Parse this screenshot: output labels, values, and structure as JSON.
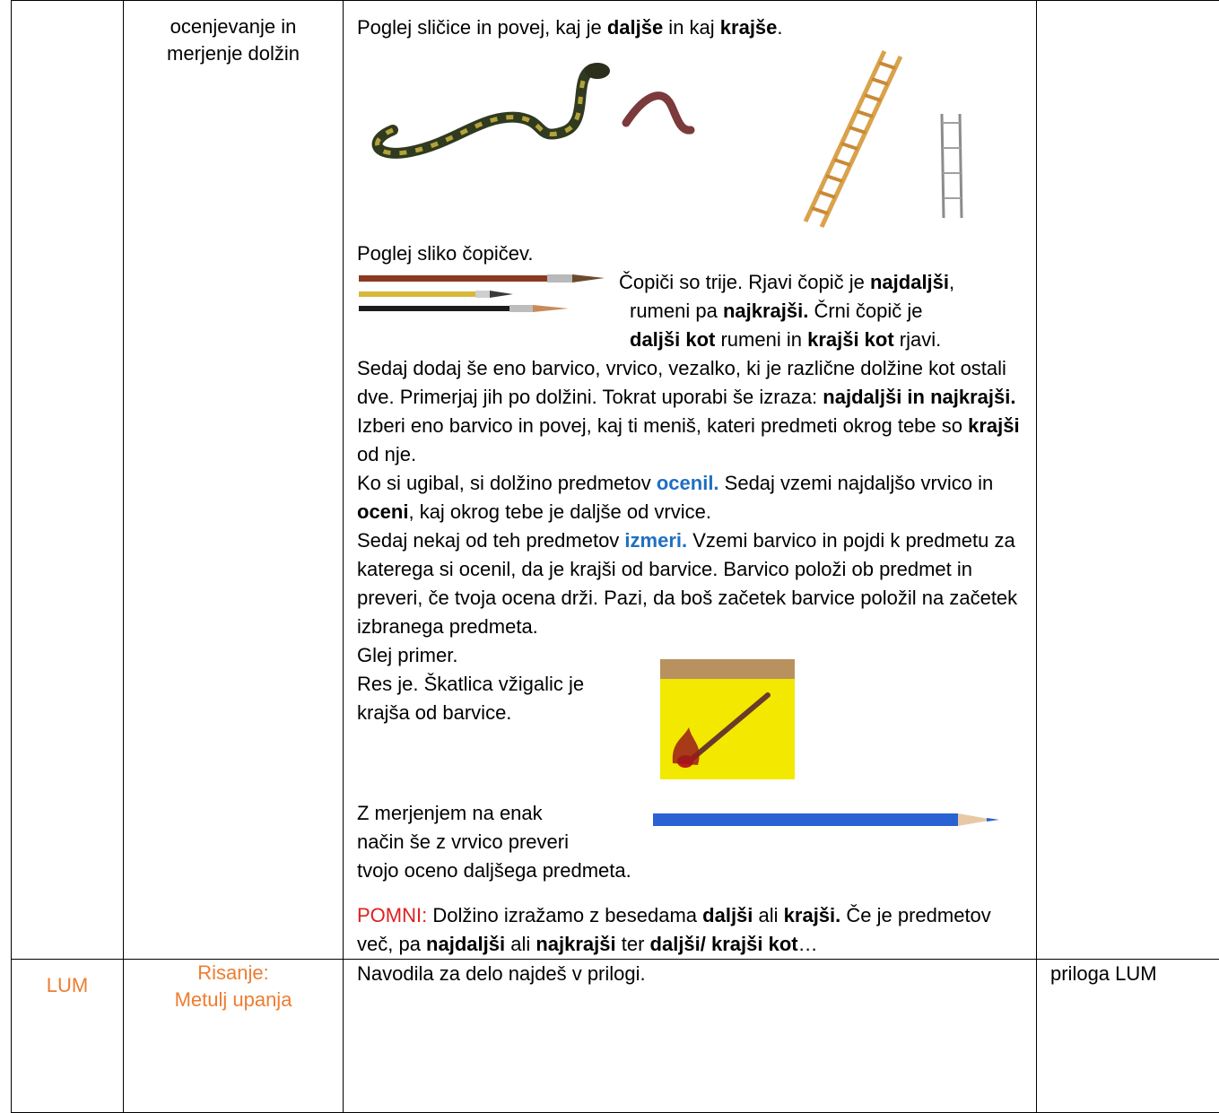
{
  "row1": {
    "topic_line1": "ocenjevanje in",
    "topic_line2": "merjenje dolžin",
    "intro_a": "Poglej sličice in povej, kaj je ",
    "intro_b": "daljše",
    "intro_c": " in kaj ",
    "intro_d": "krajše",
    "intro_e": ".",
    "brushes_title": "Poglej sliko čopičev.",
    "brush_t1a": "Čopiči so trije. Rjavi čopič je ",
    "brush_t1b": "najdaljši",
    "brush_t1c": ",",
    "brush_t2a": "rumeni pa ",
    "brush_t2b": "najkrajši.",
    "brush_t2c": " Črni čopič je",
    "brush_t3a": "daljši kot",
    "brush_t3b": " rumeni in ",
    "brush_t3c": "krajši kot",
    "brush_t3d": " rjavi.",
    "p1": "Sedaj dodaj še eno barvico, vrvico, vezalko, ki je različne dolžine kot ostali dve. Primerjaj jih po dolžini. Tokrat uporabi še izraza: ",
    "p1b": "najdaljši in najkrajši.",
    "p2a": "Izberi eno barvico in povej, kaj ti meniš, kateri predmeti okrog tebe so ",
    "p2b": "krajši",
    "p2c": " od nje.",
    "p3a": "Ko si ugibal, si dolžino predmetov ",
    "p3b": "ocenil.",
    "p3c": " Sedaj vzemi najdaljšo vrvico in ",
    "p3d": "oceni",
    "p3e": ", kaj okrog tebe je daljše od vrvice.",
    "p4a": "Sedaj nekaj od teh predmetov ",
    "p4b": "izmeri.",
    "p4c": " Vzemi barvico in pojdi k predmetu za katerega si ocenil, da je krajši od barvice. Barvico položi ob predmet in preveri, če tvoja ocena drži. Pazi, da boš začetek barvice položil na začetek izbranega predmeta.",
    "ex1": "Glej primer.",
    "ex2": "Res je. Škatlica vžigalic je",
    "ex3": "krajša od barvice.",
    "ex4": "Z merjenjem na enak",
    "ex5": "način še z vrvico preveri",
    "ex6": "tvojo oceno daljšega predmeta.",
    "pomni": "POMNI:",
    "r1": " Dolžino izražamo z besedama ",
    "r2": "daljši",
    "r3": " ali ",
    "r4": "krajši.",
    "r5": " Če je predmetov več, pa ",
    "r6": "najdaljši",
    "r7": " ali ",
    "r8": "najkrajši",
    "r9": " ter ",
    "r10": "daljši/ krajši kot",
    "r11": "…"
  },
  "row2": {
    "subject": "LUM",
    "topic_line1": "Risanje:",
    "topic_line2": "Metulj upanja",
    "instructions": "Navodila za delo najdeš v prilogi.",
    "attachment": "priloga LUM"
  },
  "colors": {
    "orange": "#ED7D31",
    "blue": "#1F6FC2",
    "red": "#E02020"
  }
}
